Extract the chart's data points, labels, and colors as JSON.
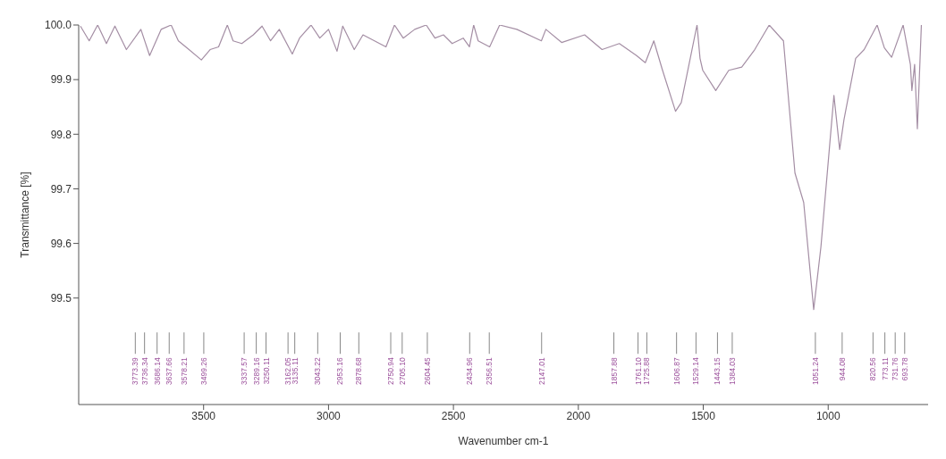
{
  "chart_data": {
    "type": "line",
    "xlabel": "Wavenumber cm-1",
    "ylabel": "Transmittance [%]",
    "xlim": [
      4000,
      600
    ],
    "xticks": [
      3500,
      3000,
      2500,
      2000,
      1500,
      1000
    ],
    "ylim": [
      99.305,
      100.0
    ],
    "yticks": [
      99.5,
      99.6,
      99.7,
      99.8,
      99.9,
      {
        "value": 100.0,
        "label": "100.0"
      }
    ],
    "marker": "none",
    "line_style": "solid",
    "series": [
      {
        "color": "#a48ea4",
        "x": [
          3993,
          3958,
          3924,
          3889,
          3855,
          3809,
          3751,
          3716,
          3670,
          3630,
          3601,
          3566,
          3509,
          3474,
          3440,
          3405,
          3382,
          3347,
          3301,
          3266,
          3232,
          3197,
          3145,
          3116,
          3070,
          3035,
          3000,
          2966,
          2943,
          2897,
          2862,
          2816,
          2770,
          2736,
          2701,
          2655,
          2609,
          2574,
          2540,
          2505,
          2461,
          2436,
          2419,
          2401,
          2355,
          2315,
          2246,
          2148,
          2130,
          2067,
          1975,
          1905,
          1836,
          1767,
          1732,
          1698,
          1663,
          1611,
          1588,
          1525,
          1513,
          1502,
          1450,
          1398,
          1346,
          1294,
          1236,
          1179,
          1133,
          1098,
          1058,
          1029,
          977,
          954,
          937,
          890,
          856,
          804,
          775,
          746,
          700,
          671,
          665,
          654,
          643,
          627
        ],
        "values": [
          99.998,
          99.971,
          100.0,
          99.966,
          99.998,
          99.955,
          99.992,
          99.944,
          99.992,
          100.0,
          99.971,
          99.958,
          99.936,
          99.955,
          99.96,
          100.0,
          99.971,
          99.966,
          99.982,
          99.998,
          99.971,
          99.992,
          99.947,
          99.976,
          100.0,
          99.976,
          99.992,
          99.952,
          99.998,
          99.955,
          99.982,
          99.971,
          99.96,
          100.0,
          99.976,
          99.992,
          100.0,
          99.976,
          99.982,
          99.966,
          99.976,
          99.96,
          100.0,
          99.971,
          99.96,
          100.0,
          99.992,
          99.971,
          99.992,
          99.968,
          99.982,
          99.955,
          99.966,
          99.944,
          99.931,
          99.971,
          99.917,
          99.842,
          99.858,
          100.0,
          99.939,
          99.917,
          99.88,
          99.917,
          99.923,
          99.955,
          100.0,
          99.971,
          99.729,
          99.675,
          99.479,
          99.594,
          99.871,
          99.772,
          99.826,
          99.939,
          99.955,
          100.0,
          99.958,
          99.941,
          100.0,
          99.928,
          99.88,
          99.928,
          99.81,
          100.0
        ]
      }
    ],
    "annotations": [
      "3773.39",
      "3736.34",
      "3686.14",
      "3637.66",
      "3578.21",
      "3499.26",
      "3337.57",
      "3289.16",
      "3250.11",
      "3162.05",
      "3135.11",
      "3043.22",
      "2953.16",
      "2878.68",
      "2750.94",
      "2705.10",
      "2604.45",
      "2434.96",
      "2356.51",
      "2147.01",
      "1857.88",
      "1761.10",
      "1725.88",
      "1606.87",
      "1529.14",
      "1443.15",
      "1384.03",
      "1051.24",
      "944.08",
      "820.56",
      "773.11",
      "731.76",
      "693.78"
    ]
  }
}
